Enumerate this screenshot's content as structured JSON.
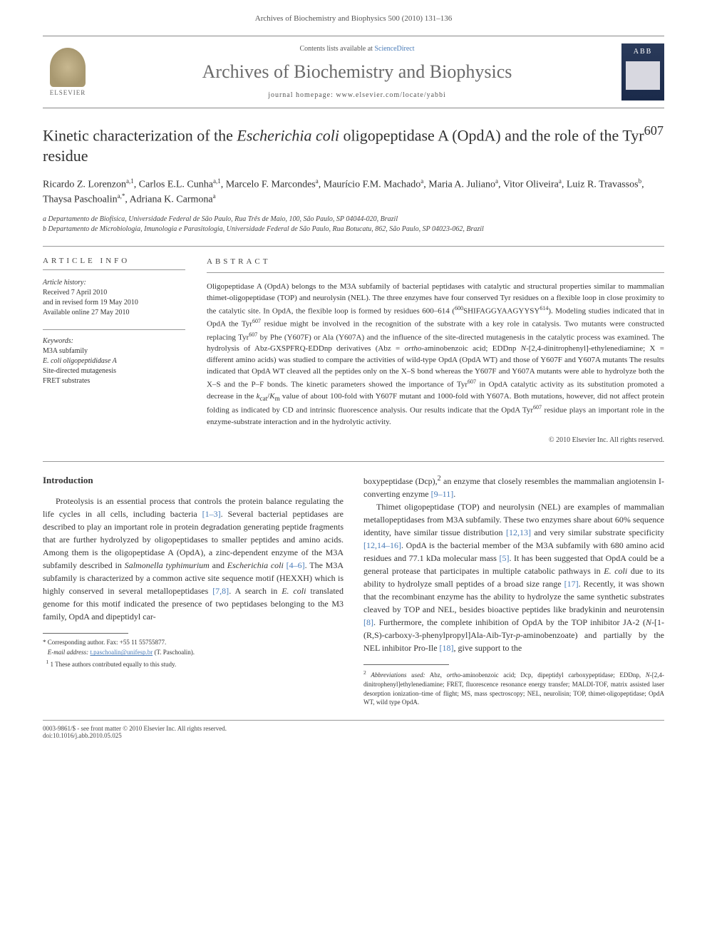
{
  "header": {
    "journal_ref": "Archives of Biochemistry and Biophysics 500 (2010) 131–136",
    "contents_prefix": "Contents lists available at ",
    "contents_link": "ScienceDirect",
    "journal_title": "Archives of Biochemistry and Biophysics",
    "homepage_prefix": "journal homepage: ",
    "homepage_url": "www.elsevier.com/locate/yabbi",
    "elsevier_label": "ELSEVIER",
    "cover_abb": "ABB"
  },
  "article": {
    "title_html": "Kinetic characterization of the <em>Escherichia coli</em> oligopeptidase A (OpdA) and the role of the Tyr<sup>607</sup> residue",
    "authors_html": "Ricardo Z. Lorenzon<sup>a,1</sup>, Carlos E.L. Cunha<sup>a,1</sup>, Marcelo F. Marcondes<sup>a</sup>, Maurício F.M. Machado<sup>a</sup>, Maria A. Juliano<sup>a</sup>, Vitor Oliveira<sup>a</sup>, Luiz R. Travassos<sup>b</sup>, Thaysa Paschoalin<sup>a,*</sup>, Adriana K. Carmona<sup>a</sup>",
    "affiliations": [
      "a Departamento de Biofísica, Universidade Federal de São Paulo, Rua Três de Maio, 100, São Paulo, SP 04044-020, Brazil",
      "b Departamento de Microbiologia, Imunologia e Parasitologia, Universidade Federal de São Paulo, Rua Botucatu, 862, São Paulo, SP 04023-062, Brazil"
    ]
  },
  "article_info": {
    "heading": "ARTICLE INFO",
    "history_label": "Article history:",
    "history": [
      "Received 7 April 2010",
      "and in revised form 19 May 2010",
      "Available online 27 May 2010"
    ],
    "keywords_label": "Keywords:",
    "keywords": [
      "M3A subfamily",
      "E. coli oligopeptididase A",
      "Site-directed mutagenesis",
      "FRET substrates"
    ]
  },
  "abstract": {
    "heading": "ABSTRACT",
    "body_html": "Oligopeptidase A (OpdA) belongs to the M3A subfamily of bacterial peptidases with catalytic and structural properties similar to mammalian thimet-oligopeptidase (TOP) and neurolysin (NEL). The three enzymes have four conserved Tyr residues on a flexible loop in close proximity to the catalytic site. In OpdA, the flexible loop is formed by residues 600–614 (<sup>600</sup>SHIFAGGYAAGYYSY<sup>614</sup>). Modeling studies indicated that in OpdA the Tyr<sup>607</sup> residue might be involved in the recognition of the substrate with a key role in catalysis. Two mutants were constructed replacing Tyr<sup>607</sup> by Phe (Y607F) or Ala (Y607A) and the influence of the site-directed mutagenesis in the catalytic process was examined. The hydrolysis of Abz-GXSPFRQ-EDDnp derivatives (Abz = <em>ortho</em>-aminobenzoic acid; EDDnp <em>N</em>-[2,4-dinitrophenyl]-ethylenediamine; X = different amino acids) was studied to compare the activities of wild-type OpdA (OpdA WT) and those of Y607F and Y607A mutants The results indicated that OpdA WT cleaved all the peptides only on the X–S bond whereas the Y607F and Y607A mutants were able to hydrolyze both the X–S and the P–F bonds. The kinetic parameters showed the importance of Tyr<sup>607</sup> in OpdA catalytic activity as its substitution promoted a decrease in the <em>k</em><sub>cat</sub>/<em>K</em><sub>m</sub> value of about 100-fold with Y607F mutant and 1000-fold with Y607A. Both mutations, however, did not affect protein folding as indicated by CD and intrinsic fluorescence analysis. Our results indicate that the OpdA Tyr<sup>607</sup> residue plays an important role in the enzyme-substrate interaction and in the hydrolytic activity.",
    "copyright": "© 2010 Elsevier Inc. All rights reserved."
  },
  "body": {
    "intro_heading": "Introduction",
    "col1_p1_html": "Proteolysis is an essential process that controls the protein balance regulating the life cycles in all cells, including bacteria <span class=\"ref\">[1–3]</span>. Several bacterial peptidases are described to play an important role in protein degradation generating peptide fragments that are further hydrolyzed by oligopeptidases to smaller peptides and amino acids. Among them is the oligopeptidase A (OpdA), a zinc-dependent enzyme of the M3A subfamily described in <em>Salmonella typhimurium</em> and <em>Escherichia coli</em> <span class=\"ref\">[4–6]</span>. The M3A subfamily is characterized by a common active site sequence motif (HEXXH) which is highly conserved in several metallopeptidases <span class=\"ref\">[7,8]</span>. A search in <em>E. coli</em> translated genome for this motif indicated the presence of two peptidases belonging to the M3 family, OpdA and dipeptidyl car-",
    "col2_p1_html": "boxypeptidase (Dcp),<sup>2</sup> an enzyme that closely resembles the mammalian angiotensin I-converting enzyme <span class=\"ref\">[9–11]</span>.",
    "col2_p2_html": "Thimet oligopeptidase (TOP) and neurolysin (NEL) are examples of mammalian metallopeptidases from M3A subfamily. These two enzymes share about 60% sequence identity, have similar tissue distribution <span class=\"ref\">[12,13]</span> and very similar substrate specificity <span class=\"ref\">[12,14–16]</span>. OpdA is the bacterial member of the M3A subfamily with 680 amino acid residues and 77.1 kDa molecular mass <span class=\"ref\">[5]</span>. It has been suggested that OpdA could be a general protease that participates in multiple catabolic pathways in <em>E. coli</em> due to its ability to hydrolyze small peptides of a broad size range <span class=\"ref\">[17]</span>. Recently, it was shown that the recombinant enzyme has the ability to hydrolyze the same synthetic substrates cleaved by TOP and NEL, besides bioactive peptides like bradykinin and neurotensin <span class=\"ref\">[8]</span>. Furthermore, the complete inhibition of OpdA by the TOP inhibitor JA-2 (<em>N</em>-[1-(R,S)-carboxy-3-phenylpropyl]Ala-Aib-Tyr-<em>p</em>-aminobenzoate) and partially by the NEL inhibitor Pro-Ile <span class=\"ref\">[18]</span>, give support to the"
  },
  "footnotes_left": {
    "corresponding": "* Corresponding author. Fax: +55 11 55755877.",
    "email_label": "E-mail address:",
    "email": "t.paschoalin@unifesp.br",
    "email_person": "(T. Paschoalin).",
    "note1": "1 These authors contributed equally to this study."
  },
  "footnotes_right": {
    "abbrev_html": "<sup>2</sup> <em>Abbreviations used:</em> Abz, <em>ortho</em>-aminobenzoic acid; Dcp, dipeptidyl carboxypeptidase; EDDnp, <em>N</em>-[2,4-dinitrophenyl]ethylenediamine; FRET, fluorescence resonance energy transfer; MALDI-TOF, matrix assisted laser desorption ionization–time of flight; MS, mass spectroscopy; NEL, neurolisin; TOP, thimet-oligopeptidase; OpdA WT, wild type OpdA."
  },
  "footer": {
    "line1": "0003-9861/$ - see front matter © 2010 Elsevier Inc. All rights reserved.",
    "line2": "doi:10.1016/j.abb.2010.05.025"
  },
  "colors": {
    "link": "#4a7cb8",
    "text": "#333333",
    "rule": "#999999"
  }
}
